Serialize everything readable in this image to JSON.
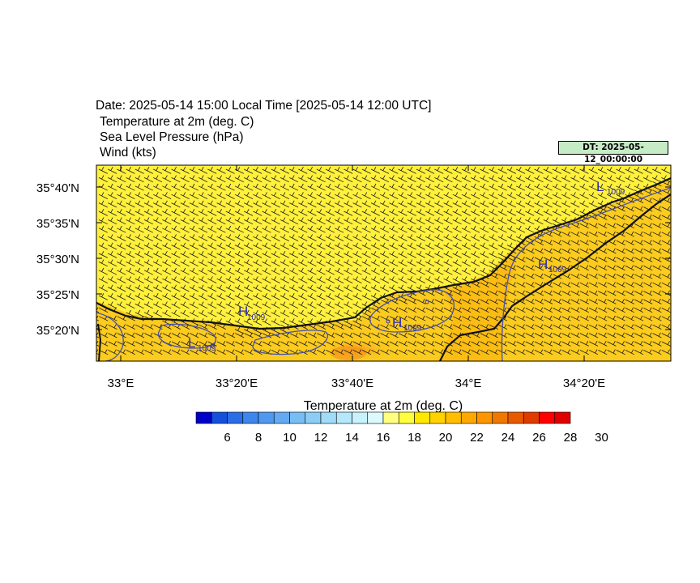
{
  "header": {
    "title": "Date: 2025-05-14  15:00 Local Time [2025-05-14  12:00 UTC]",
    "line1": "Temperature at 2m   (deg. C)",
    "line2": "Sea Level Pressure   (hPa)",
    "line3": "Wind   (kts)",
    "dt_label": "DT: 2025-05-12_00:00:00"
  },
  "map": {
    "lat_labels": [
      "35°40'N",
      "35°35'N",
      "35°30'N",
      "35°25'N",
      "35°20'N"
    ],
    "lon_labels": [
      "33°E",
      "33°20'E",
      "33°40'E",
      "34°E",
      "34°20'E"
    ],
    "pressure_labels": [
      {
        "kind": "L",
        "value": "1009"
      },
      {
        "kind": "H",
        "value": "1009"
      },
      {
        "kind": "H",
        "value": "1009"
      },
      {
        "kind": "L",
        "value": "1009"
      },
      {
        "kind": "H",
        "value": "1009"
      }
    ],
    "wind_direction": "south-east to north-west onshore flow over land, north-west flow over sea"
  },
  "colorbar": {
    "title": "Temperature at 2m  (deg. C)",
    "tick_labels": [
      "6",
      "8",
      "10",
      "12",
      "14",
      "16",
      "18",
      "20",
      "22",
      "24",
      "26",
      "28",
      "30"
    ],
    "colors": [
      "#0000c8",
      "#1450dc",
      "#2a6ee6",
      "#3d86ec",
      "#5098f0",
      "#64aaf2",
      "#78bef4",
      "#8ccdf6",
      "#a0dcf8",
      "#b4e8fa",
      "#c8f2fc",
      "#dcfafc",
      "#ffff80",
      "#ffff40",
      "#ffe800",
      "#ffd200",
      "#ffbe00",
      "#ffa800",
      "#ff9600",
      "#f07800",
      "#e85a00",
      "#e03c00",
      "#ff0000",
      "#e00000"
    ]
  }
}
